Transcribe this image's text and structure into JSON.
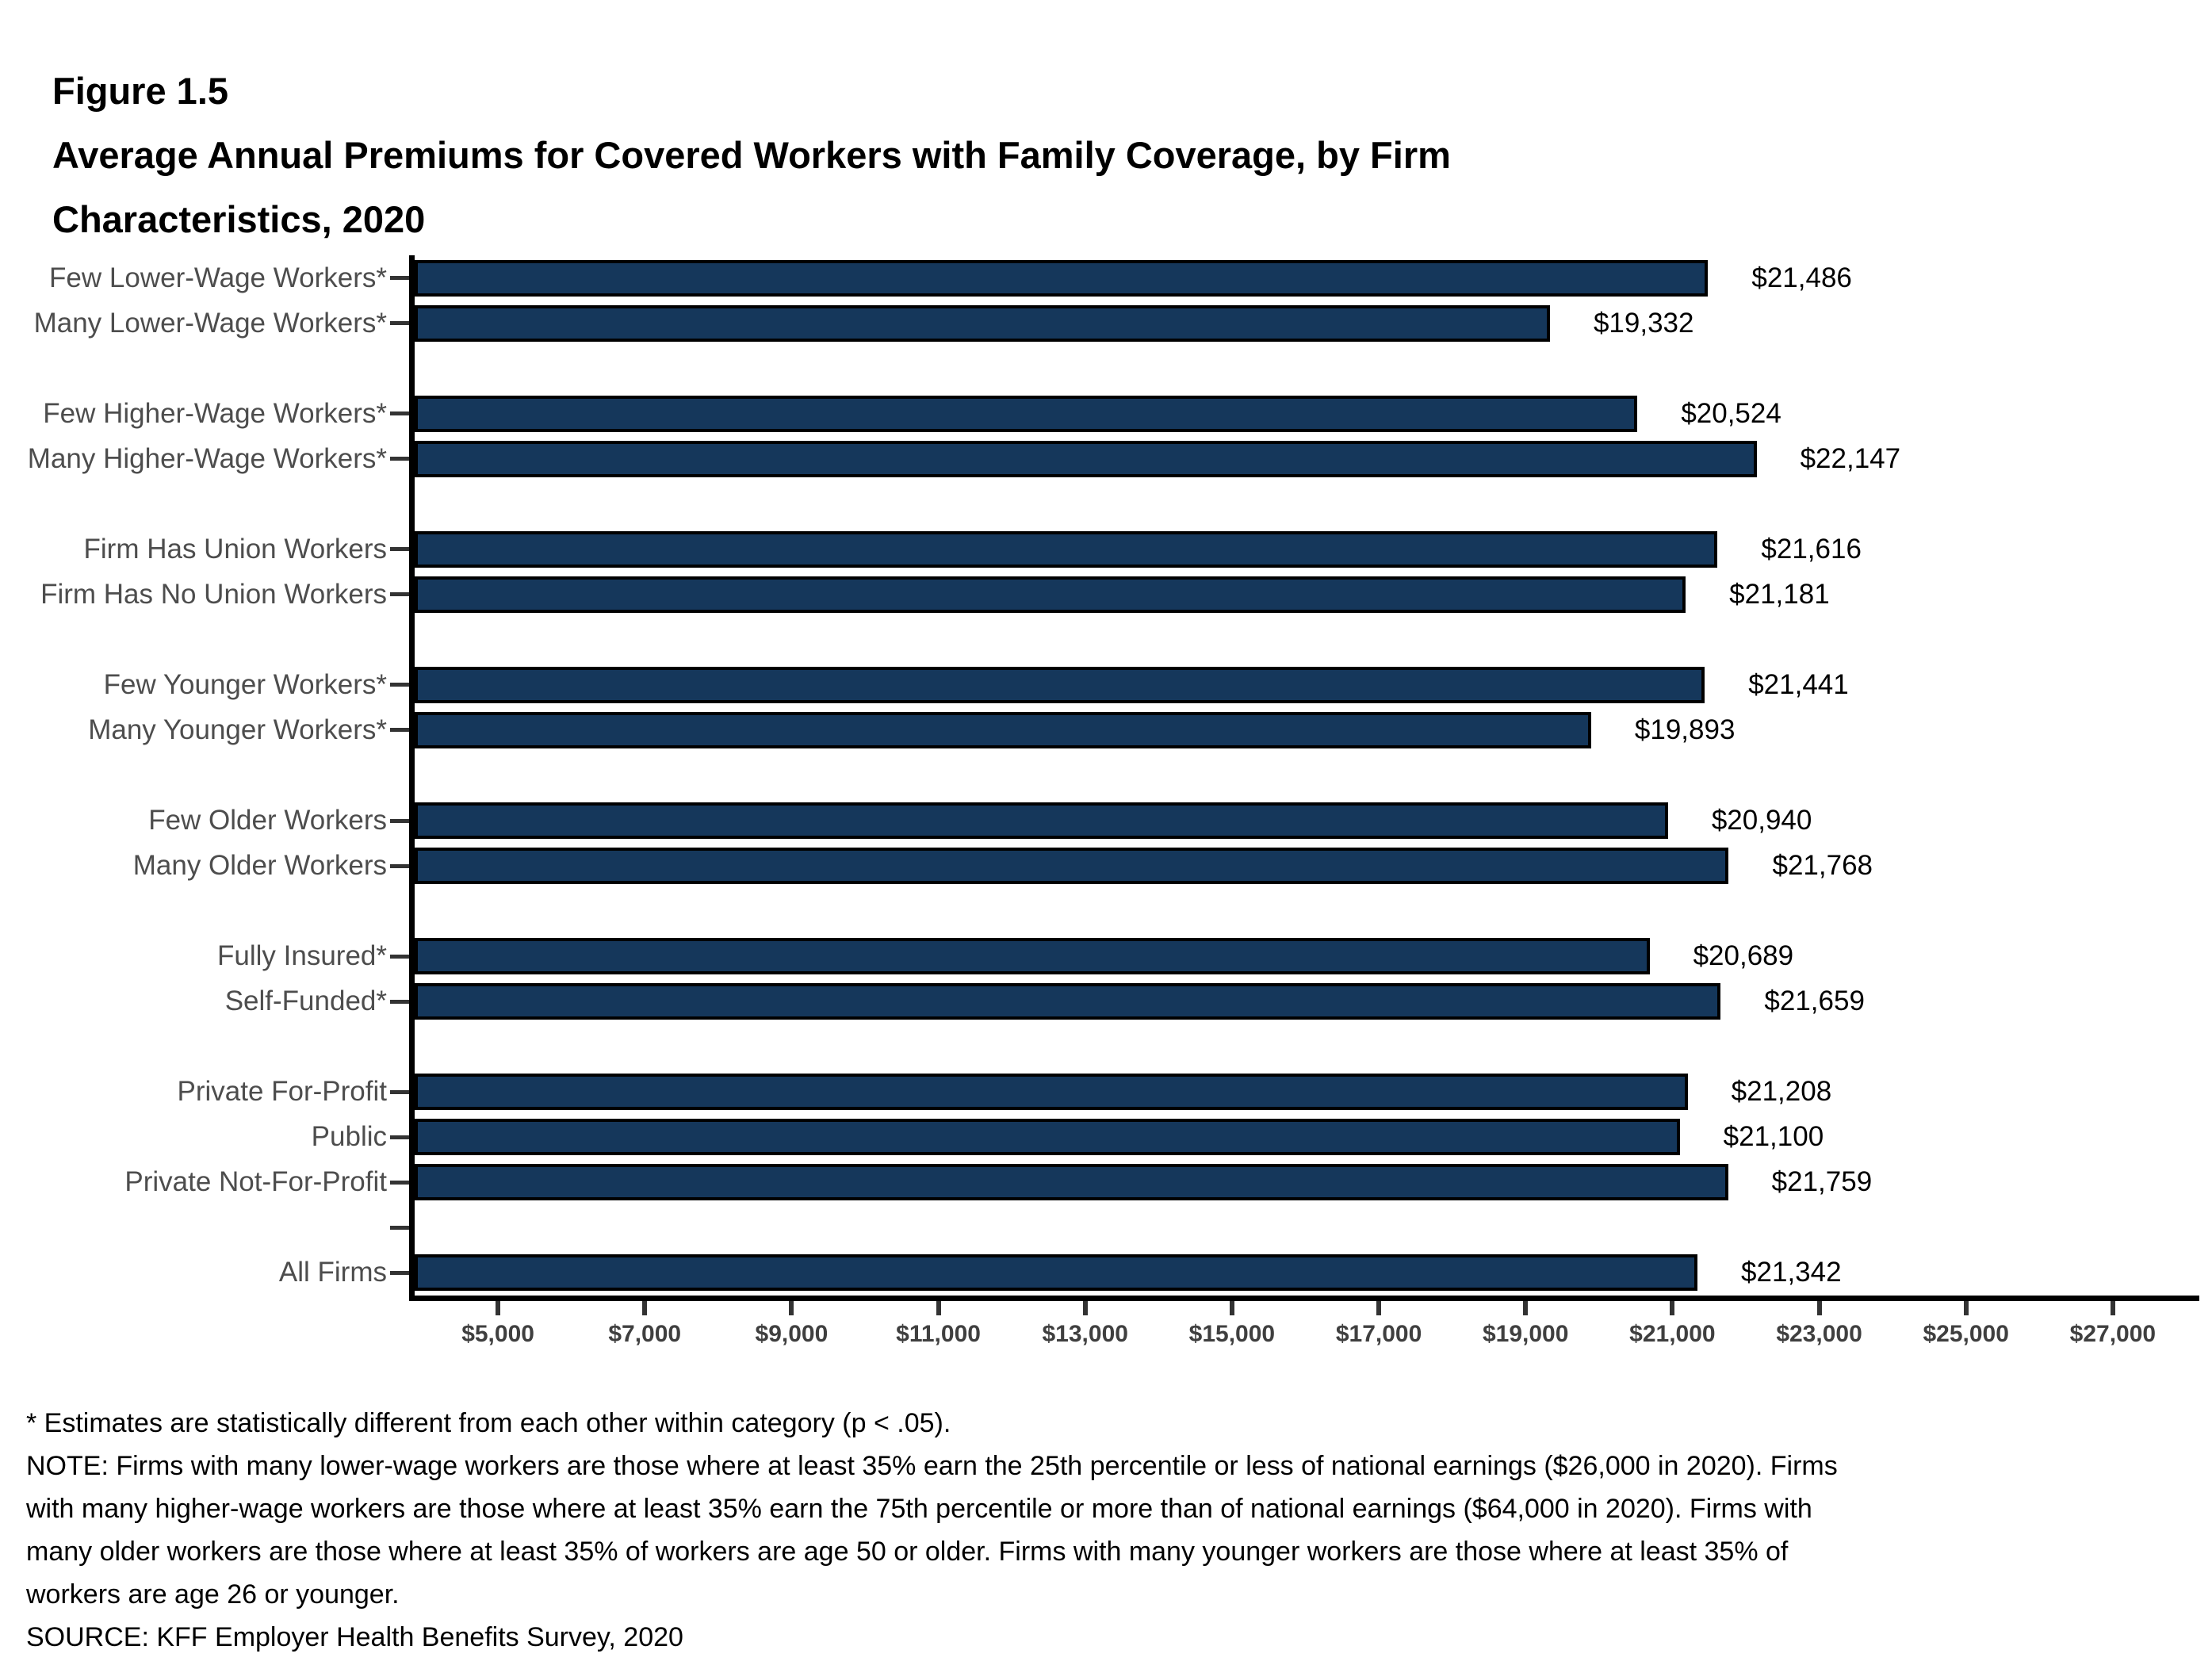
{
  "figure": {
    "label": "Figure 1.5",
    "title_lines": [
      "Average Annual Premiums for Covered Workers with Family Coverage, by Firm",
      "Characteristics, 2020"
    ]
  },
  "chart_data": {
    "type": "bar",
    "orientation": "horizontal",
    "title": "Average Annual Premiums for Covered Workers with Family Coverage, by Firm Characteristics, 2020",
    "categories": [
      "Few Lower-Wage Workers*",
      "Many Lower-Wage Workers*",
      "Few Higher-Wage Workers*",
      "Many Higher-Wage Workers*",
      "Firm Has Union Workers",
      "Firm Has No Union Workers",
      "Few Younger Workers*",
      "Many Younger Workers*",
      "Few Older Workers",
      "Many Older Workers",
      "Fully Insured*",
      "Self-Funded*",
      "Private For-Profit",
      "Public",
      "Private Not-For-Profit",
      "All Firms"
    ],
    "values": [
      21486,
      19332,
      20524,
      22147,
      21616,
      21181,
      21441,
      19893,
      20940,
      21768,
      20689,
      21659,
      21208,
      21100,
      21759,
      21342
    ],
    "rows": [
      {
        "label": "Few Lower-Wage Workers*",
        "value": 21486
      },
      {
        "label": "Many Lower-Wage Workers*",
        "value": 19332
      },
      {
        "spacer": true
      },
      {
        "label": "Few Higher-Wage Workers*",
        "value": 20524
      },
      {
        "label": "Many Higher-Wage Workers*",
        "value": 22147
      },
      {
        "spacer": true
      },
      {
        "label": "Firm Has Union Workers",
        "value": 21616
      },
      {
        "label": "Firm Has No Union Workers",
        "value": 21181
      },
      {
        "spacer": true
      },
      {
        "label": "Few Younger Workers*",
        "value": 21441
      },
      {
        "label": "Many Younger Workers*",
        "value": 19893
      },
      {
        "spacer": true
      },
      {
        "label": "Few Older Workers",
        "value": 20940
      },
      {
        "label": "Many Older Workers",
        "value": 21768
      },
      {
        "spacer": true
      },
      {
        "label": "Fully Insured*",
        "value": 20689
      },
      {
        "label": "Self-Funded*",
        "value": 21659
      },
      {
        "spacer": true
      },
      {
        "label": "Private For-Profit",
        "value": 21208
      },
      {
        "label": "Public",
        "value": 21100
      },
      {
        "label": "Private Not-For-Profit",
        "value": 21759
      },
      {
        "spacer": true,
        "tick": true
      },
      {
        "label": "All Firms",
        "value": 21342
      }
    ],
    "x_axis": {
      "min": 3865,
      "max": 28103,
      "tick_values": [
        5000,
        7000,
        9000,
        11000,
        13000,
        15000,
        17000,
        19000,
        21000,
        23000,
        25000,
        27000
      ],
      "tick_labels": [
        "$5,000",
        "$7,000",
        "$9,000",
        "$11,000",
        "$13,000",
        "$15,000",
        "$17,000",
        "$19,000",
        "$21,000",
        "$23,000",
        "$25,000",
        "$27,000"
      ]
    },
    "value_label_prefix": "$",
    "bar_fill": "#15375B",
    "bar_border": "#000000",
    "grid": "off",
    "legend": "none"
  },
  "footnotes": {
    "star": "* Estimates are statistically different from each other within category (p < .05).",
    "note_lines": [
      "NOTE: Firms with many lower-wage workers are those where at least 35% earn the 25th percentile or less of national earnings ($26,000 in 2020). Firms",
      "with many higher-wage workers are those where at least 35% earn the 75th percentile or more than of national earnings ($64,000 in 2020). Firms with",
      "many older workers are those where at least 35% of workers are age 50 or older. Firms with many younger workers are those where at least 35% of",
      "workers are age 26 or younger."
    ],
    "source": "SOURCE: KFF Employer Health Benefits Survey, 2020"
  }
}
